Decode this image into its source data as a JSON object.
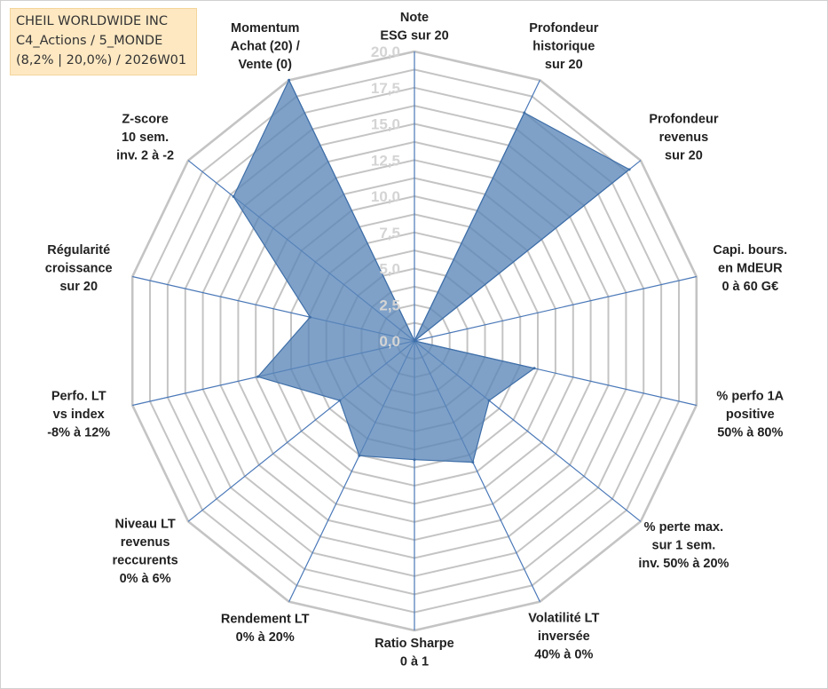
{
  "title_box": {
    "line1": "CHEIL WORLDWIDE INC",
    "line2": "C4_Actions / 5_MONDE",
    "line3": "(8,2% | 20,0%) / 2026W01"
  },
  "colors": {
    "fill": "#5b86b8",
    "stroke": "#3f6fa8",
    "grid": "#c4c4c4",
    "axis": "#4a78b8"
  },
  "chart_data": {
    "type": "radar",
    "title": "CHEIL WORLDWIDE INC",
    "rmin": 0,
    "rmax": 20,
    "ticks": [
      "0,0",
      "2,5",
      "5,0",
      "7,5",
      "10,0",
      "12,5",
      "15,0",
      "17,5",
      "20,0"
    ],
    "tick_values": [
      0,
      2.5,
      5,
      7.5,
      10,
      12.5,
      15,
      17.5,
      20
    ],
    "minor_ring_step": 1.25,
    "axes": [
      {
        "label": [
          "Note",
          "ESG sur 20"
        ],
        "value": 0
      },
      {
        "label": [
          "Profondeur",
          "historique",
          "sur 20"
        ],
        "value": 17.5
      },
      {
        "label": [
          "Profondeur",
          "revenus",
          "sur 20"
        ],
        "value": 19
      },
      {
        "label": [
          "Capi. bours.",
          "en MdEUR",
          "0 à 60 G€"
        ],
        "value": 0
      },
      {
        "label": [
          "% perfo 1A",
          "positive",
          "50% à 80%"
        ],
        "value": 8.5
      },
      {
        "label": [
          "% perte max.",
          "sur 1 sem.",
          "inv. 50% à 20%"
        ],
        "value": 6.6
      },
      {
        "label": [
          "Volatilité LT",
          "inversée",
          "40% à 0%"
        ],
        "value": 9.3
      },
      {
        "label": [
          "Ratio Sharpe",
          "0 à 1"
        ],
        "value": 8.2
      },
      {
        "label": [
          "Rendement LT",
          "0% à 20%"
        ],
        "value": 8.8
      },
      {
        "label": [
          "Niveau LT",
          "revenus",
          "reccurents",
          "0% à 6%"
        ],
        "value": 6.6
      },
      {
        "label": [
          "Perfo. LT",
          "vs index",
          "-8% à 12%"
        ],
        "value": 11.1
      },
      {
        "label": [
          "Régularité",
          "croissance",
          "sur 20"
        ],
        "value": 7.4
      },
      {
        "label": [
          "Z-score",
          "10 sem.",
          "inv. 2 à -2"
        ],
        "value": 16
      },
      {
        "label": [
          "Momentum",
          "Achat (20) /",
          "Vente (0)"
        ],
        "value": 20
      }
    ]
  }
}
